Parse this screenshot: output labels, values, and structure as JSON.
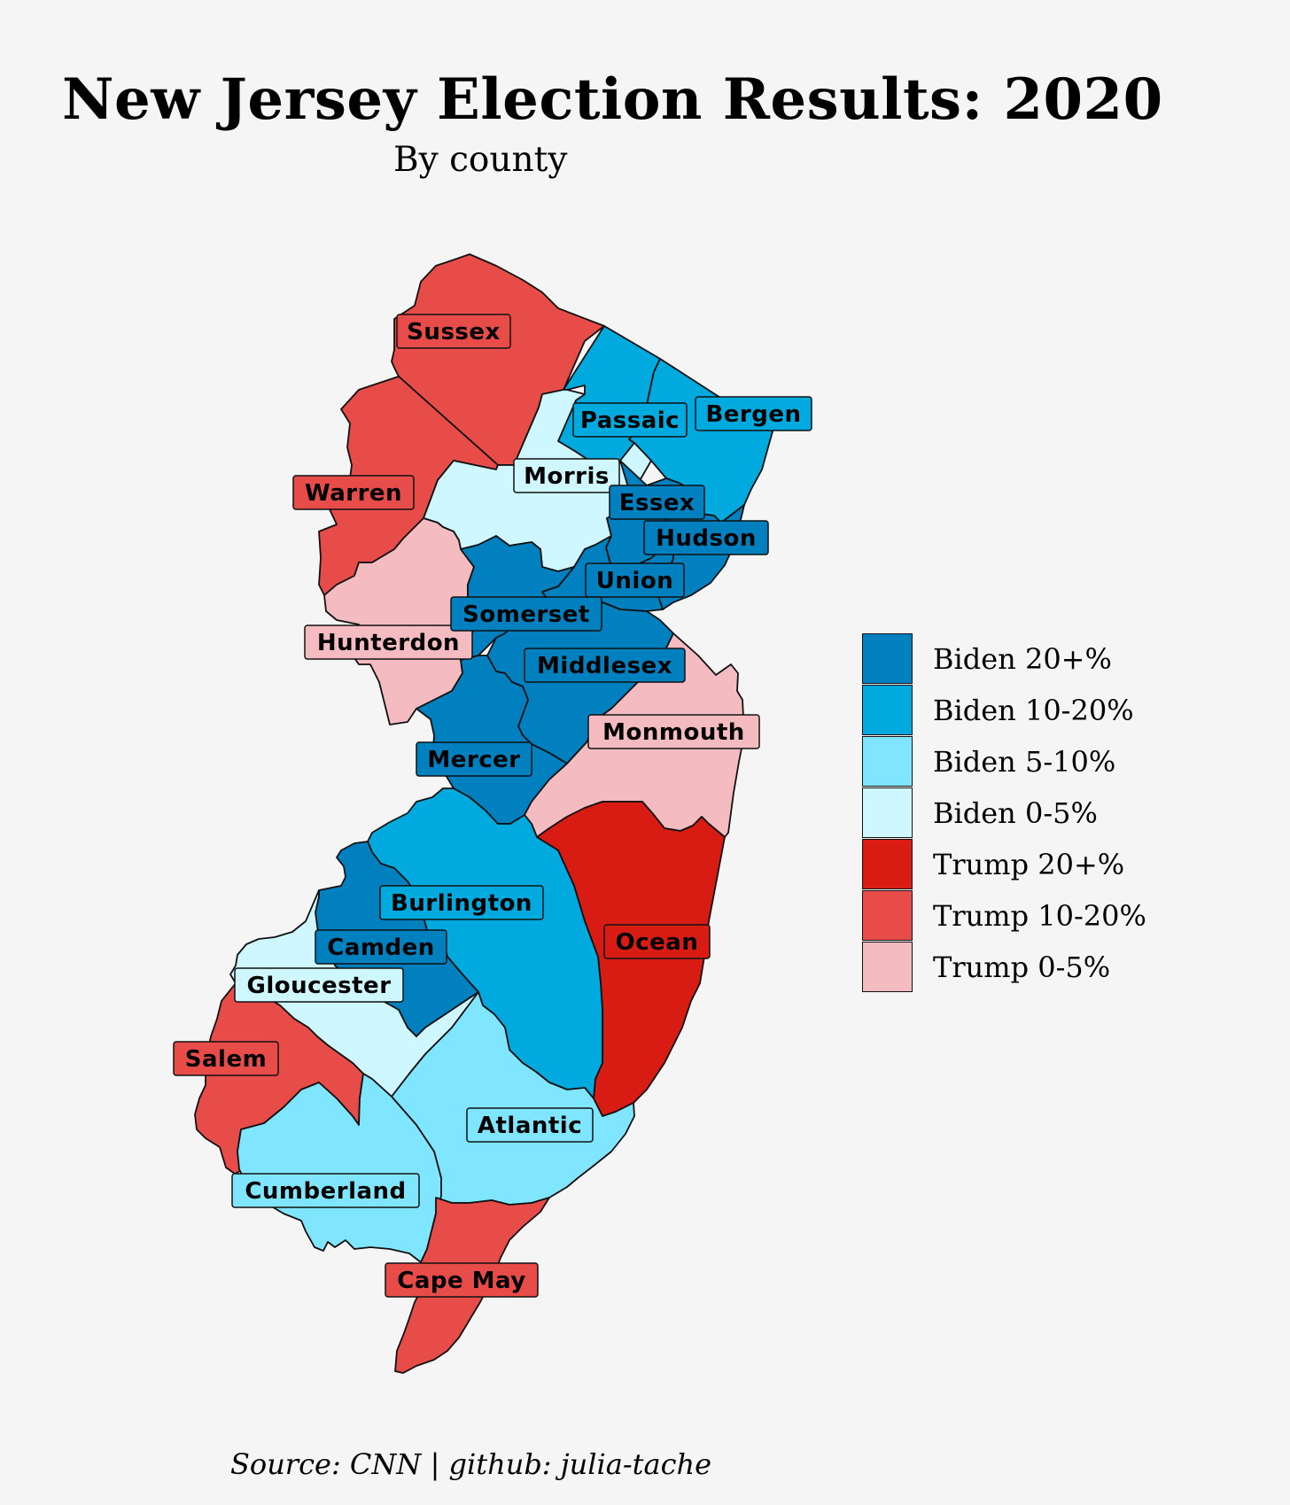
{
  "title": "New Jersey Election Results: 2020",
  "subtitle": "By county",
  "source": "Source: CNN | github: julia-tache",
  "colors": {
    "biden_20_plus": "#0080bf",
    "biden_10_20": "#00aade",
    "biden_5_10": "#80e6ff",
    "biden_0_5": "#cff7ff",
    "trump_20_plus": "#d81c14",
    "trump_10_20": "#e84c49",
    "trump_0_5": "#f4bcc0",
    "background": "#f5f5f5"
  },
  "legend": [
    {
      "label": "Biden 20+%",
      "category": "biden_20_plus"
    },
    {
      "label": "Biden 10-20%",
      "category": "biden_10_20"
    },
    {
      "label": "Biden 5-10%",
      "category": "biden_5_10"
    },
    {
      "label": "Biden 0-5%",
      "category": "biden_0_5"
    },
    {
      "label": "Trump 20+%",
      "category": "trump_20_plus"
    },
    {
      "label": "Trump 10-20%",
      "category": "trump_10_20"
    },
    {
      "label": "Trump 0-5%",
      "category": "trump_0_5"
    }
  ],
  "counties": [
    {
      "name": "Sussex",
      "category": "trump_10_20"
    },
    {
      "name": "Passaic",
      "category": "biden_10_20"
    },
    {
      "name": "Bergen",
      "category": "biden_10_20"
    },
    {
      "name": "Warren",
      "category": "trump_10_20"
    },
    {
      "name": "Morris",
      "category": "biden_0_5"
    },
    {
      "name": "Essex",
      "category": "biden_20_plus"
    },
    {
      "name": "Hudson",
      "category": "biden_20_plus"
    },
    {
      "name": "Union",
      "category": "biden_20_plus"
    },
    {
      "name": "Hunterdon",
      "category": "trump_0_5"
    },
    {
      "name": "Somerset",
      "category": "biden_20_plus"
    },
    {
      "name": "Middlesex",
      "category": "biden_20_plus"
    },
    {
      "name": "Mercer",
      "category": "biden_20_plus"
    },
    {
      "name": "Monmouth",
      "category": "trump_0_5"
    },
    {
      "name": "Ocean",
      "category": "trump_20_plus"
    },
    {
      "name": "Burlington",
      "category": "biden_10_20"
    },
    {
      "name": "Camden",
      "category": "biden_20_plus"
    },
    {
      "name": "Gloucester",
      "category": "biden_0_5"
    },
    {
      "name": "Salem",
      "category": "trump_10_20"
    },
    {
      "name": "Atlantic",
      "category": "biden_5_10"
    },
    {
      "name": "Cumberland",
      "category": "biden_5_10"
    },
    {
      "name": "Cape May",
      "category": "trump_10_20"
    }
  ]
}
